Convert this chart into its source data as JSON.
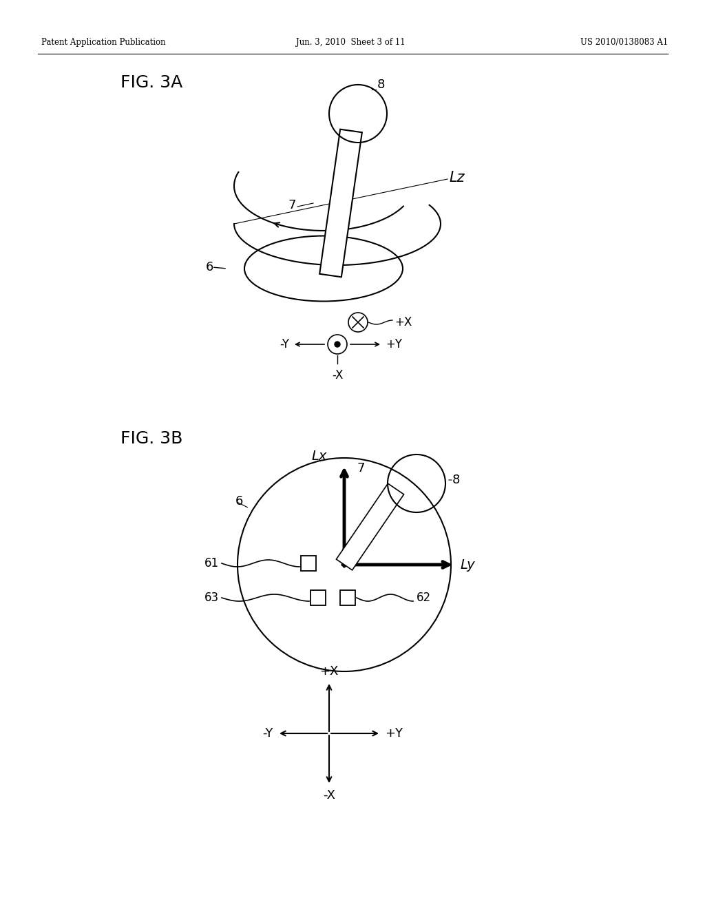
{
  "bg_color": "#ffffff",
  "header_left": "Patent Application Publication",
  "header_center": "Jun. 3, 2010  Sheet 3 of 11",
  "header_right": "US 2010/0138083 A1",
  "fig3a_label": "FIG. 3A",
  "fig3b_label": "FIG. 3B",
  "text_color": "#000000",
  "line_color": "#000000"
}
